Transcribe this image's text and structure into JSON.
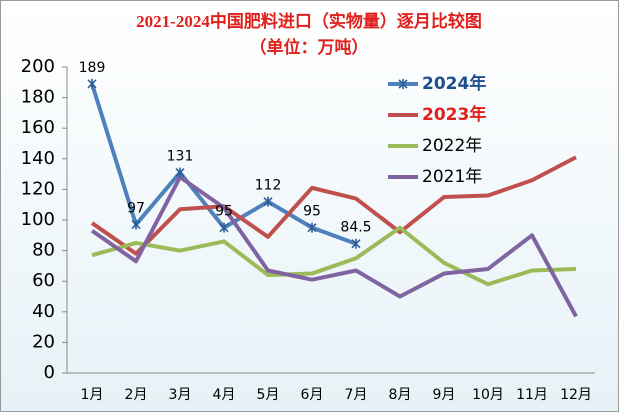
{
  "chart_data": {
    "type": "line",
    "title": "2021-2024中国肥料进口（实物量）逐月比较图",
    "subtitle": "（单位：万吨）",
    "categories": [
      "1月",
      "2月",
      "3月",
      "4月",
      "5月",
      "6月",
      "7月",
      "8月",
      "9月",
      "10月",
      "11月",
      "12月"
    ],
    "series": [
      {
        "name": "2024年",
        "color": "#4f81bd",
        "values": [
          189,
          97,
          131,
          95,
          112,
          95,
          84.5,
          null,
          null,
          null,
          null,
          null
        ]
      },
      {
        "name": "2023年",
        "color": "#c0504d",
        "values": [
          98,
          78,
          107,
          109,
          89,
          121,
          114,
          92,
          115,
          116,
          126,
          141
        ]
      },
      {
        "name": "2022年",
        "color": "#9bbb59",
        "values": [
          77,
          85,
          80,
          86,
          64,
          65,
          75,
          95,
          72,
          58,
          67,
          68
        ]
      },
      {
        "name": "2021年",
        "color": "#8064a2",
        "values": [
          93,
          73,
          128,
          108,
          67,
          61,
          67,
          50,
          65,
          68,
          90,
          37
        ]
      }
    ],
    "ylim": [
      0,
      200
    ],
    "yticks": [
      0,
      20,
      40,
      60,
      80,
      100,
      120,
      140,
      160,
      180,
      200
    ],
    "legend": "upper right"
  }
}
